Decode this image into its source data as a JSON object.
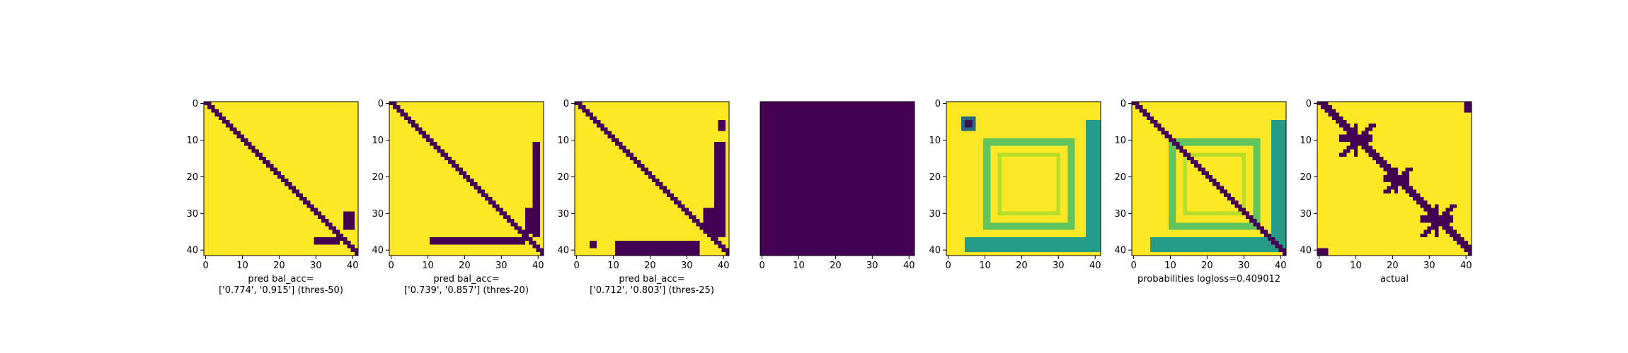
{
  "colors": {
    "low": "#440154",
    "high": "#fde725",
    "mid_light": "#b5de2b",
    "mid": "#35b779",
    "mid_dark": "#21918c",
    "axis": "#000000"
  },
  "chart_data": [
    {
      "type": "heatmap",
      "name": "pred-thres-50",
      "xlabel": "pred bal_acc=\n['0.774', '0.915'] (thres-50)",
      "n": 42,
      "xticks": [
        0,
        10,
        20,
        30,
        40
      ],
      "yticks": [
        0,
        10,
        20,
        30,
        40
      ],
      "background": 1,
      "features": [
        {
          "kind": "diagonal",
          "width": 2,
          "value": 0,
          "from": 0,
          "to": 41
        },
        {
          "kind": "block",
          "rows": [
            37,
            38
          ],
          "cols": [
            30,
            36
          ],
          "value": 0
        },
        {
          "kind": "block",
          "rows": [
            30,
            34
          ],
          "cols": [
            38,
            40
          ],
          "value": 0
        }
      ]
    },
    {
      "type": "heatmap",
      "name": "pred-thres-20",
      "xlabel": "pred bal_acc=\n['0.739', '0.857'] (thres-20)",
      "n": 42,
      "xticks": [
        0,
        10,
        20,
        30,
        40
      ],
      "yticks": [
        0,
        10,
        20,
        30,
        40
      ],
      "background": 1,
      "features": [
        {
          "kind": "diagonal",
          "width": 2,
          "value": 0,
          "from": 0,
          "to": 41
        },
        {
          "kind": "block",
          "rows": [
            37,
            38
          ],
          "cols": [
            11,
            36
          ],
          "value": 0
        },
        {
          "kind": "block",
          "rows": [
            11,
            36
          ],
          "cols": [
            39,
            40
          ],
          "value": 0
        },
        {
          "kind": "block",
          "rows": [
            29,
            35
          ],
          "cols": [
            37,
            39
          ],
          "value": 0
        }
      ]
    },
    {
      "type": "heatmap",
      "name": "pred-thres-25",
      "xlabel": "pred bal_acc=\n['0.712', '0.803'] (thres-25)",
      "n": 42,
      "xticks": [
        0,
        10,
        20,
        30,
        40
      ],
      "yticks": [
        0,
        10,
        20,
        30,
        40
      ],
      "background": 1,
      "features": [
        {
          "kind": "diagonal",
          "width": 2,
          "value": 0,
          "from": 0,
          "to": 41
        },
        {
          "kind": "block",
          "rows": [
            38,
            41
          ],
          "cols": [
            11,
            33
          ],
          "value": 0
        },
        {
          "kind": "block",
          "rows": [
            38,
            39
          ],
          "cols": [
            4,
            5
          ],
          "value": 0
        },
        {
          "kind": "block",
          "rows": [
            11,
            36
          ],
          "cols": [
            38,
            40
          ],
          "value": 0
        },
        {
          "kind": "block",
          "rows": [
            5,
            7
          ],
          "cols": [
            39,
            40
          ],
          "value": 0
        },
        {
          "kind": "block",
          "rows": [
            29,
            35
          ],
          "cols": [
            35,
            38
          ],
          "value": 0
        }
      ]
    },
    {
      "type": "heatmap",
      "name": "blank-panel",
      "xlabel": "",
      "n": 42,
      "xticks": [
        0,
        10,
        20,
        30,
        40
      ],
      "yticks": [],
      "background": 0,
      "features": []
    },
    {
      "type": "heatmap",
      "name": "probabilities-map",
      "xlabel": "",
      "n": 42,
      "xticks": [
        0,
        10,
        20,
        30,
        40
      ],
      "yticks": [
        0,
        10,
        20,
        30,
        40
      ],
      "background": 1,
      "features": [
        {
          "kind": "frame",
          "rows": [
            10,
            34
          ],
          "cols": [
            10,
            34
          ],
          "thickness": 2,
          "value": 0.75
        },
        {
          "kind": "frame",
          "rows": [
            14,
            30
          ],
          "cols": [
            14,
            30
          ],
          "thickness": 1,
          "value": 0.85
        },
        {
          "kind": "block",
          "rows": [
            37,
            40
          ],
          "cols": [
            5,
            39
          ],
          "value": 0.55
        },
        {
          "kind": "block",
          "rows": [
            5,
            40
          ],
          "cols": [
            38,
            41
          ],
          "value": 0.55
        },
        {
          "kind": "block",
          "rows": [
            4,
            7
          ],
          "cols": [
            4,
            7
          ],
          "value": 0.35
        },
        {
          "kind": "block",
          "rows": [
            5,
            6
          ],
          "cols": [
            5,
            6
          ],
          "value": 0.05
        }
      ]
    },
    {
      "type": "heatmap",
      "name": "probabilities-logloss",
      "xlabel": "probabilities logloss=0.409012",
      "n": 42,
      "xticks": [
        0,
        10,
        20,
        30,
        40
      ],
      "yticks": [
        0,
        10,
        20,
        30,
        40
      ],
      "background": 1,
      "features": [
        {
          "kind": "frame",
          "rows": [
            10,
            34
          ],
          "cols": [
            10,
            34
          ],
          "thickness": 2,
          "value": 0.75
        },
        {
          "kind": "frame",
          "rows": [
            14,
            30
          ],
          "cols": [
            14,
            30
          ],
          "thickness": 1,
          "value": 0.85
        },
        {
          "kind": "block",
          "rows": [
            37,
            40
          ],
          "cols": [
            5,
            39
          ],
          "value": 0.55
        },
        {
          "kind": "block",
          "rows": [
            5,
            40
          ],
          "cols": [
            38,
            41
          ],
          "value": 0.55
        },
        {
          "kind": "diagonal",
          "width": 2,
          "value": 0,
          "from": 0,
          "to": 41
        }
      ]
    },
    {
      "type": "heatmap",
      "name": "actual",
      "xlabel": "actual",
      "n": 42,
      "xticks": [
        0,
        10,
        20,
        30,
        40
      ],
      "yticks": [
        0,
        10,
        20,
        30,
        40
      ],
      "background": 1,
      "features": [
        {
          "kind": "diagonal",
          "width": 3,
          "value": 0,
          "from": 0,
          "to": 41
        },
        {
          "kind": "cross",
          "center": [
            10,
            10
          ],
          "size": 4,
          "value": 0
        },
        {
          "kind": "cross",
          "center": [
            21,
            21
          ],
          "size": 3,
          "value": 0
        },
        {
          "kind": "cross",
          "center": [
            32,
            32
          ],
          "size": 4,
          "value": 0
        },
        {
          "kind": "block",
          "rows": [
            40,
            41
          ],
          "cols": [
            0,
            2
          ],
          "value": 0
        },
        {
          "kind": "block",
          "rows": [
            0,
            2
          ],
          "cols": [
            40,
            41
          ],
          "value": 0
        }
      ]
    }
  ]
}
